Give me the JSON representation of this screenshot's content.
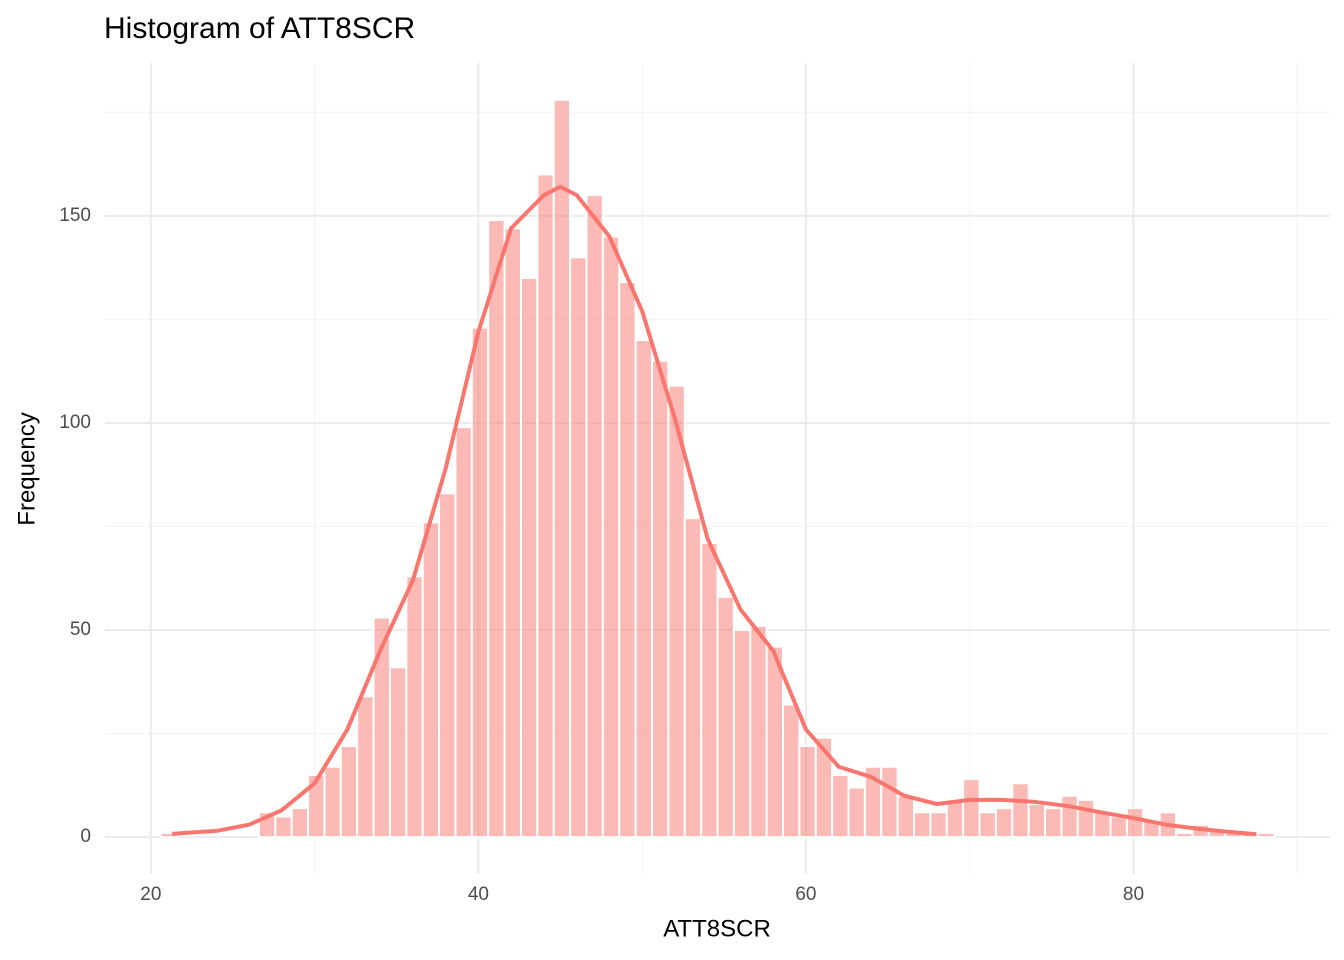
{
  "chart_data": {
    "type": "histogram",
    "title": "Histogram of ATT8SCR",
    "xlabel": "ATT8SCR",
    "ylabel": "Frequency",
    "bins": [
      20.6,
      21.6,
      22.6,
      23.6,
      24.6,
      25.6,
      26.6,
      27.6,
      28.6,
      29.6,
      30.6,
      31.6,
      32.6,
      33.6,
      34.6,
      35.6,
      36.6,
      37.6,
      38.6,
      39.6,
      40.6,
      41.6,
      42.6,
      43.6,
      44.6,
      45.6,
      46.6,
      47.6,
      48.6,
      49.6,
      50.6,
      51.6,
      52.6,
      53.6,
      54.6,
      55.6,
      56.6,
      57.6,
      58.6,
      59.6,
      60.6,
      61.6,
      62.6,
      63.6,
      64.6,
      65.6,
      66.6,
      67.6,
      68.6,
      69.6,
      70.6,
      71.6,
      72.6,
      73.6,
      74.6,
      75.6,
      76.6,
      77.6,
      78.6,
      79.6,
      80.6,
      81.6,
      82.6,
      83.6,
      84.6,
      85.6,
      86.6,
      87.6,
      88.6
    ],
    "values": [
      1,
      0,
      0,
      0,
      0,
      0,
      6,
      5,
      7,
      15,
      17,
      22,
      34,
      53,
      41,
      63,
      76,
      83,
      99,
      123,
      149,
      147,
      135,
      160,
      178,
      140,
      155,
      145,
      134,
      120,
      115,
      109,
      77,
      71,
      58,
      50,
      51,
      46,
      32,
      22,
      24,
      15,
      12,
      17,
      17,
      10,
      6,
      6,
      9,
      14,
      6,
      7,
      13,
      8,
      7,
      10,
      9,
      6,
      5,
      7,
      4,
      6,
      1,
      3,
      2,
      1,
      1,
      1
    ],
    "color": "#F8766D",
    "density": {
      "type": "line",
      "color": "#F8766D",
      "x": [
        21.3,
        22,
        24,
        26,
        28,
        30,
        32,
        34,
        36,
        38,
        40,
        42,
        44,
        45,
        46,
        48,
        50,
        52,
        54,
        56,
        58,
        60,
        62,
        64,
        66,
        68,
        70,
        72,
        74,
        76,
        78,
        80,
        82,
        84,
        86,
        87.5
      ],
      "values": [
        0.8,
        1,
        1.5,
        3,
        6.5,
        13,
        26,
        45,
        62,
        89,
        122,
        147,
        155,
        157,
        155,
        145,
        127,
        101,
        72,
        55,
        45,
        26,
        17,
        14.5,
        10,
        8,
        9,
        9,
        8.5,
        7.5,
        6,
        4.6,
        3,
        2,
        1.2,
        0.7
      ]
    },
    "xlim": [
      17.2,
      92.0
    ],
    "ylim": [
      -8.9,
      186.9
    ],
    "xticks": [
      20,
      40,
      60,
      80
    ],
    "yticks": [
      0,
      50,
      100,
      150
    ],
    "x_minor_ticks": [
      30,
      50,
      70,
      90
    ],
    "y_minor_ticks": [
      25,
      75,
      125,
      175
    ],
    "grid": true
  }
}
